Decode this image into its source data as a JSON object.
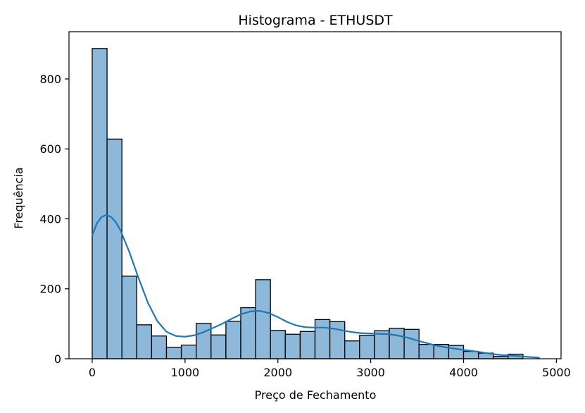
{
  "chart_data": {
    "type": "bar",
    "title": "Histograma - ETHUSDT",
    "xlabel": "Preço de Fechamento",
    "ylabel": "Frequência",
    "xlim": [
      -250,
      5050
    ],
    "ylim": [
      0,
      935
    ],
    "bin_width": 160,
    "bins": [
      {
        "x0": 0,
        "x1": 160,
        "count": 887
      },
      {
        "x0": 160,
        "x1": 320,
        "count": 628
      },
      {
        "x0": 320,
        "x1": 480,
        "count": 236
      },
      {
        "x0": 480,
        "x1": 640,
        "count": 97
      },
      {
        "x0": 640,
        "x1": 800,
        "count": 65
      },
      {
        "x0": 800,
        "x1": 960,
        "count": 33
      },
      {
        "x0": 960,
        "x1": 1120,
        "count": 39
      },
      {
        "x0": 1120,
        "x1": 1280,
        "count": 101
      },
      {
        "x0": 1280,
        "x1": 1440,
        "count": 68
      },
      {
        "x0": 1440,
        "x1": 1600,
        "count": 107
      },
      {
        "x0": 1600,
        "x1": 1760,
        "count": 146
      },
      {
        "x0": 1760,
        "x1": 1920,
        "count": 226
      },
      {
        "x0": 1920,
        "x1": 2080,
        "count": 81
      },
      {
        "x0": 2080,
        "x1": 2240,
        "count": 70
      },
      {
        "x0": 2240,
        "x1": 2400,
        "count": 78
      },
      {
        "x0": 2400,
        "x1": 2560,
        "count": 112
      },
      {
        "x0": 2560,
        "x1": 2720,
        "count": 106
      },
      {
        "x0": 2720,
        "x1": 2880,
        "count": 51
      },
      {
        "x0": 2880,
        "x1": 3040,
        "count": 67
      },
      {
        "x0": 3040,
        "x1": 3200,
        "count": 80
      },
      {
        "x0": 3200,
        "x1": 3360,
        "count": 87
      },
      {
        "x0": 3360,
        "x1": 3520,
        "count": 84
      },
      {
        "x0": 3520,
        "x1": 3680,
        "count": 41
      },
      {
        "x0": 3680,
        "x1": 3840,
        "count": 41
      },
      {
        "x0": 3840,
        "x1": 4000,
        "count": 38
      },
      {
        "x0": 4000,
        "x1": 4160,
        "count": 21
      },
      {
        "x0": 4160,
        "x1": 4320,
        "count": 16
      },
      {
        "x0": 4320,
        "x1": 4480,
        "count": 7
      },
      {
        "x0": 4480,
        "x1": 4640,
        "count": 13
      }
    ],
    "kde": {
      "x": [
        0,
        50,
        100,
        150,
        200,
        250,
        300,
        400,
        500,
        600,
        700,
        800,
        900,
        1000,
        1100,
        1200,
        1300,
        1400,
        1500,
        1600,
        1700,
        1800,
        1900,
        2000,
        2100,
        2200,
        2300,
        2400,
        2500,
        2600,
        2700,
        2800,
        2900,
        3000,
        3100,
        3200,
        3300,
        3400,
        3500,
        3600,
        3700,
        3800,
        3900,
        4000,
        4100,
        4200,
        4300,
        4400,
        4500,
        4600,
        4700,
        4820
      ],
      "y": [
        352,
        387,
        405,
        411,
        406,
        392,
        370,
        305,
        230,
        160,
        108,
        77,
        65,
        63,
        67,
        76,
        88,
        100,
        114,
        127,
        135,
        137,
        131,
        119,
        105,
        95,
        90,
        89,
        89,
        86,
        81,
        76,
        73,
        72,
        71,
        70,
        66,
        60,
        52,
        45,
        38,
        33,
        29,
        25,
        22,
        18,
        14,
        11,
        9,
        7,
        5,
        3
      ]
    },
    "x_ticks": [
      0,
      1000,
      2000,
      3000,
      4000,
      5000
    ],
    "y_ticks": [
      0,
      200,
      400,
      600,
      800
    ],
    "colors": {
      "bar_fill": "#8db8d9",
      "bar_edge": "#000000",
      "kde_line": "#1f77b4",
      "axes": "#000000"
    },
    "grid": false,
    "legend": "none"
  }
}
